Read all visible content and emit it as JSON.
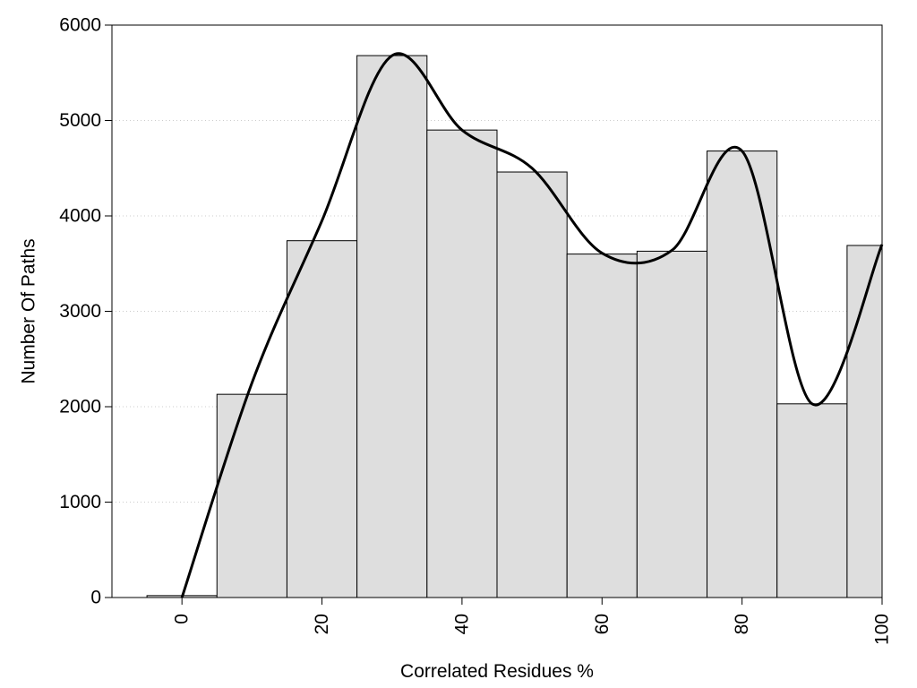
{
  "chart_data": {
    "type": "bar",
    "xlabel": "Correlated Residues %",
    "ylabel": "Number Of Paths",
    "xlim": [
      -10,
      100
    ],
    "ylim": [
      0,
      6000
    ],
    "x_ticks": [
      "0",
      "20",
      "40",
      "60",
      "80",
      "100"
    ],
    "y_ticks": [
      "0",
      "1000",
      "2000",
      "3000",
      "4000",
      "5000",
      "6000"
    ],
    "bin_width": 10,
    "grid": "horizontal dotted",
    "colors": {
      "bar_fill": "#dedede",
      "bar_stroke": "#000000",
      "curve": "#000000",
      "grid": "#cccccc"
    },
    "series": [
      {
        "kind": "bars",
        "x": [
          0,
          10,
          20,
          30,
          40,
          50,
          60,
          70,
          80,
          90,
          100
        ],
        "values": [
          20,
          2130,
          3740,
          5680,
          4900,
          4460,
          3600,
          3630,
          4680,
          2030,
          3690
        ]
      },
      {
        "kind": "smooth-line",
        "x": [
          0,
          10,
          20,
          30,
          40,
          50,
          60,
          70,
          80,
          90,
          100
        ],
        "values": [
          0,
          2250,
          3950,
          5680,
          4900,
          4500,
          3610,
          3640,
          4680,
          2030,
          3700
        ]
      }
    ]
  }
}
